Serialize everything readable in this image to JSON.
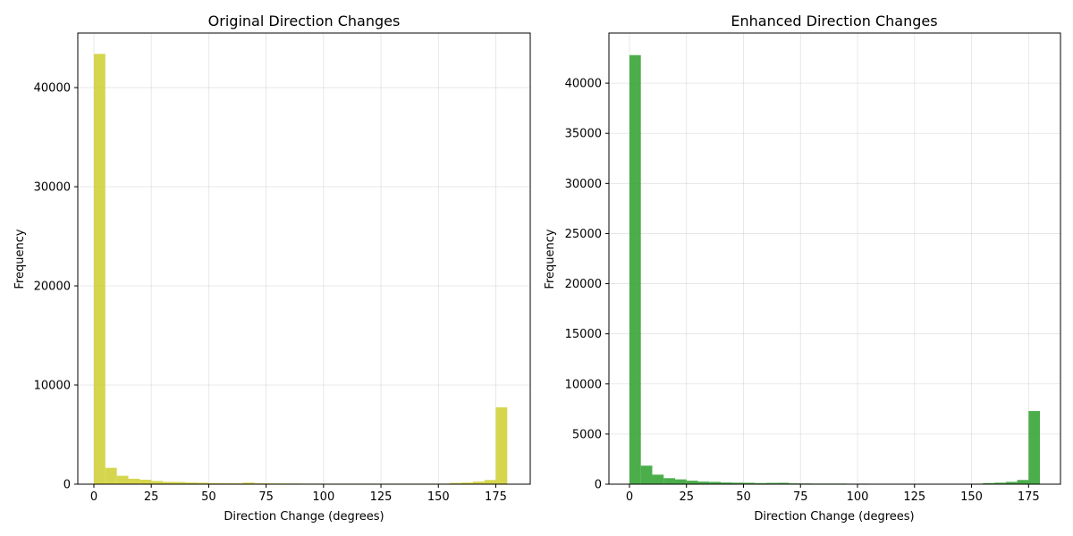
{
  "chart_data": [
    {
      "type": "bar",
      "title": "Original Direction Changes",
      "xlabel": "Direction Change (degrees)",
      "ylabel": "Frequency",
      "xlim": [
        -7,
        190
      ],
      "ylim": [
        0,
        45500
      ],
      "xticks": [
        0,
        25,
        50,
        75,
        100,
        125,
        150,
        175
      ],
      "yticks": [
        0,
        10000,
        20000,
        30000,
        40000
      ],
      "grid": true,
      "color": "#cccc22",
      "bin_width": 5,
      "bin_edges_start": 0,
      "values": [
        43400,
        1650,
        850,
        550,
        450,
        320,
        230,
        220,
        170,
        150,
        110,
        100,
        90,
        160,
        90,
        80,
        70,
        70,
        60,
        60,
        50,
        50,
        50,
        50,
        50,
        50,
        50,
        50,
        50,
        50,
        60,
        130,
        160,
        260,
        420,
        7750
      ]
    },
    {
      "type": "bar",
      "title": "Enhanced Direction Changes",
      "xlabel": "Direction Change (degrees)",
      "ylabel": "Frequency",
      "xlim": [
        -9,
        189
      ],
      "ylim": [
        0,
        45000
      ],
      "xticks": [
        0,
        25,
        50,
        75,
        100,
        125,
        150,
        175
      ],
      "yticks": [
        0,
        5000,
        10000,
        15000,
        20000,
        25000,
        30000,
        35000,
        40000
      ],
      "grid": true,
      "color": "#2ca02c",
      "bin_width": 5,
      "bin_edges_start": 0,
      "values": [
        42800,
        1850,
        950,
        600,
        480,
        350,
        260,
        230,
        170,
        150,
        140,
        110,
        130,
        140,
        80,
        70,
        60,
        60,
        60,
        50,
        50,
        40,
        40,
        40,
        40,
        40,
        40,
        40,
        40,
        40,
        50,
        110,
        150,
        230,
        420,
        7300
      ]
    }
  ]
}
